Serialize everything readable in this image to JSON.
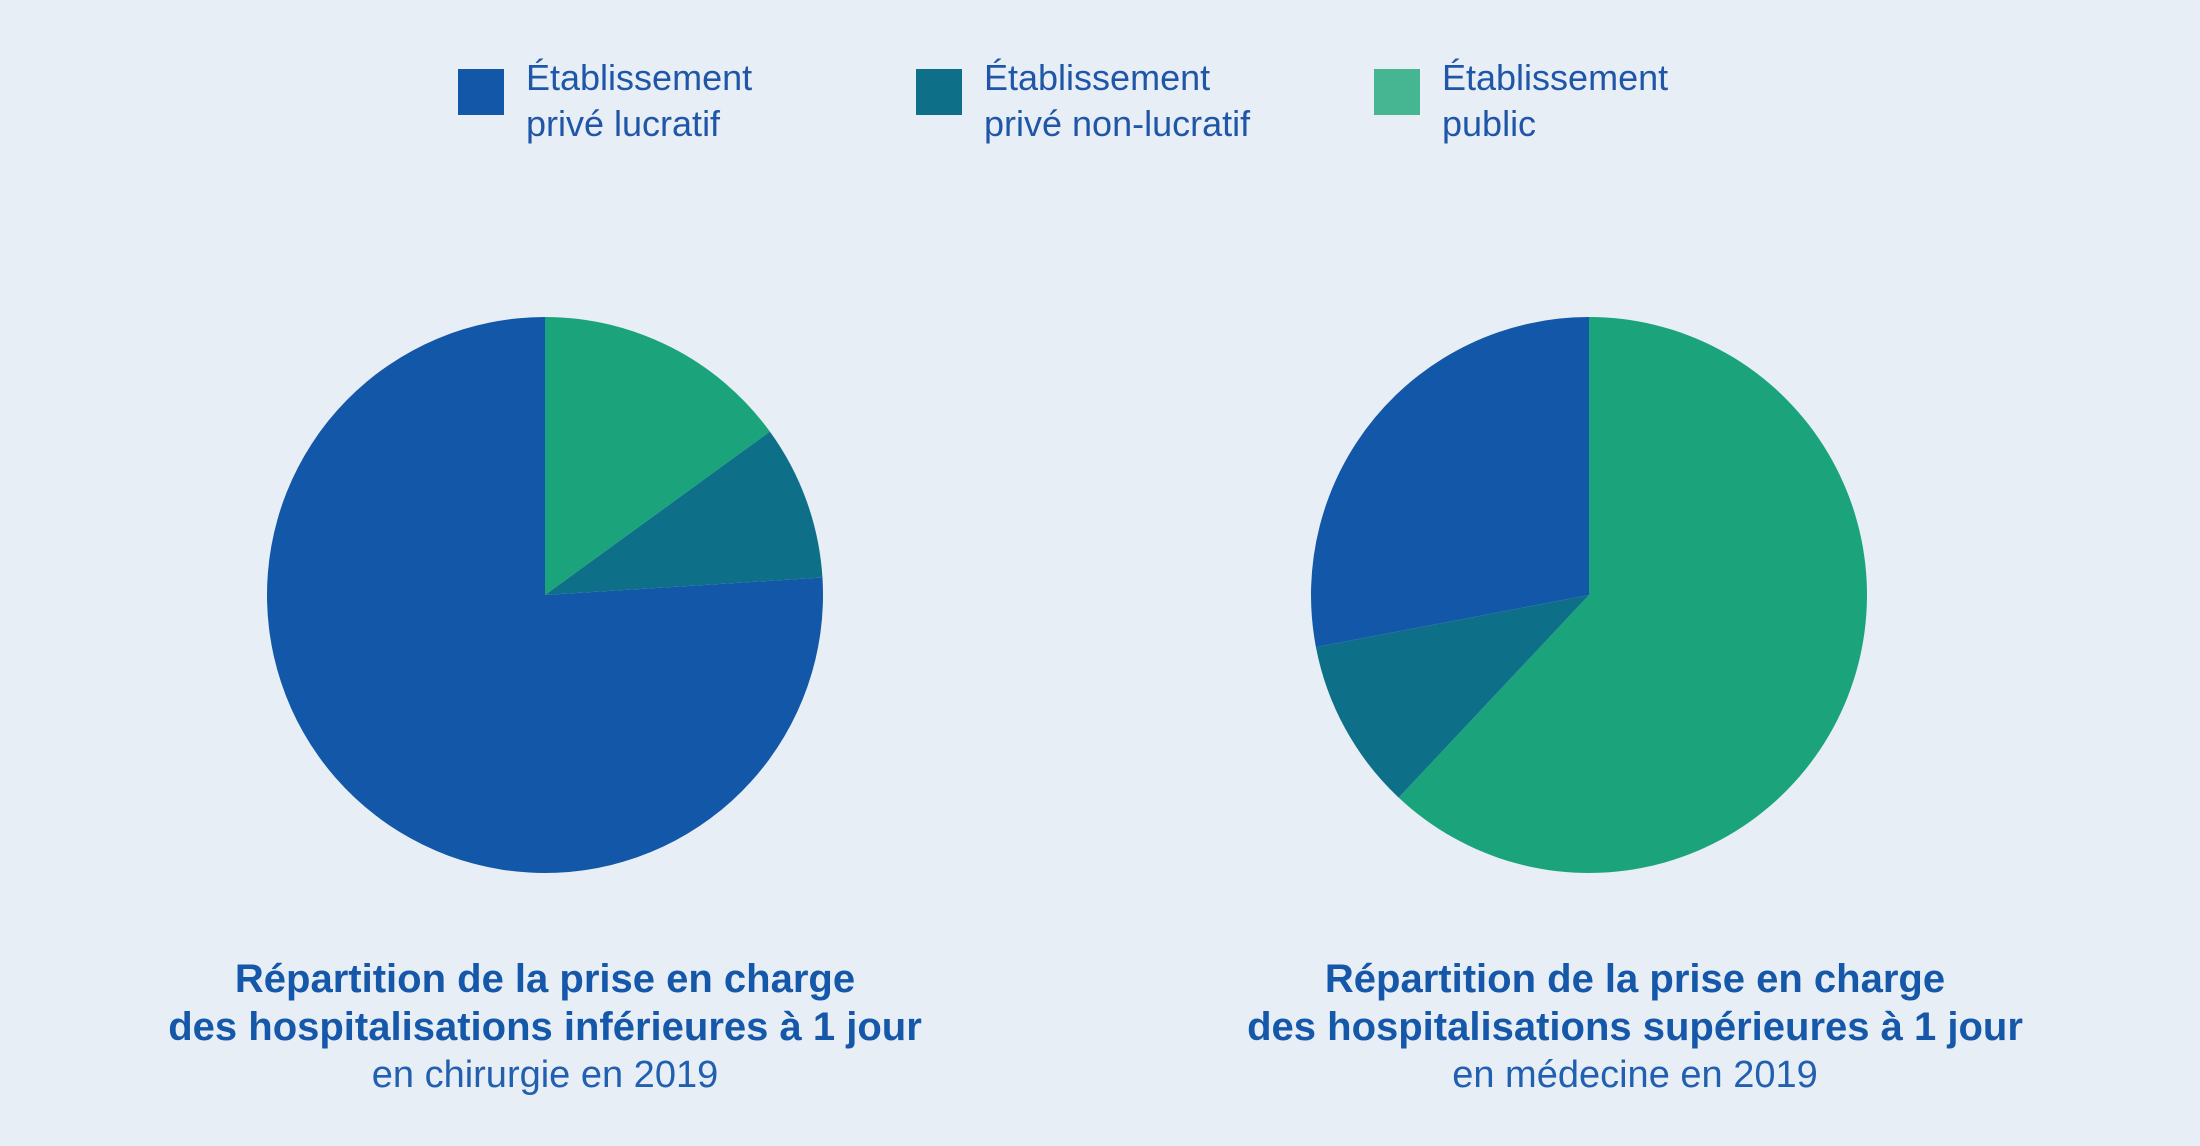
{
  "legend": [
    {
      "label": "Établissement privé lucratif",
      "color": "#1257a8"
    },
    {
      "label": "Établissement privé non-lucratif",
      "color": "#0e7088"
    },
    {
      "label": "Établissement public",
      "color": "#46b592"
    }
  ],
  "chart_data": [
    {
      "type": "pie",
      "title": "Répartition de la prise en charge",
      "title_line2": "des hospitalisations inférieures à 1 jour",
      "subtitle": "en chirurgie en 2019",
      "categories": [
        "Établissement privé lucratif",
        "Établissement privé non-lucratif",
        "Établissement public"
      ],
      "values": [
        76,
        9,
        15
      ],
      "colors": [
        "#1257a8",
        "#0e7088",
        "#1ba47c"
      ],
      "start_order": [
        2,
        1,
        0
      ],
      "legend_position": "top"
    },
    {
      "type": "pie",
      "title": "Répartition de la prise en charge",
      "title_line2": "des hospitalisations supérieures à 1 jour",
      "subtitle": "en médecine en 2019",
      "categories": [
        "Établissement privé lucratif",
        "Établissement privé non-lucratif",
        "Établissement public"
      ],
      "values": [
        28,
        10,
        62
      ],
      "colors": [
        "#1257a8",
        "#0e7088",
        "#1ba47c"
      ],
      "start_order": [
        2,
        1,
        0
      ],
      "legend_position": "top"
    }
  ]
}
